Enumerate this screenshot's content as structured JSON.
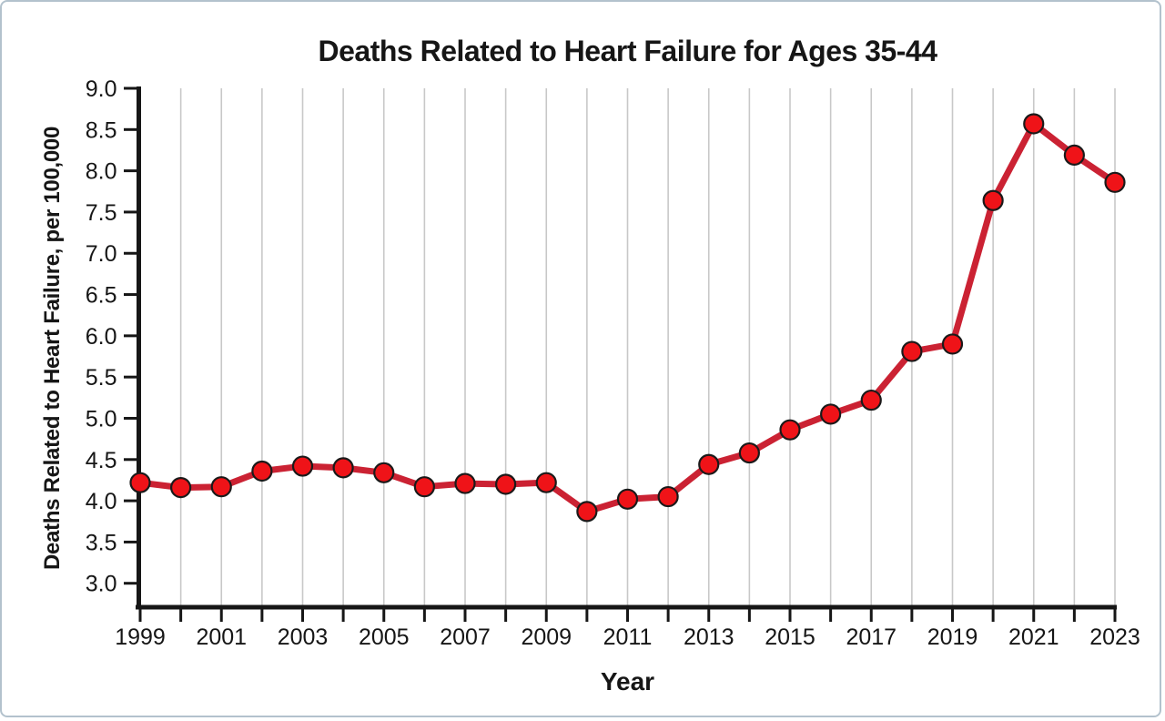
{
  "chart_data": {
    "type": "line",
    "title": "Deaths Related to Heart Failure for Ages 35-44",
    "xlabel": "Year",
    "ylabel": "Deaths Related to Heart Failure, per 100,000",
    "x": [
      1999,
      2000,
      2001,
      2002,
      2003,
      2004,
      2005,
      2006,
      2007,
      2008,
      2009,
      2010,
      2011,
      2012,
      2013,
      2014,
      2015,
      2016,
      2017,
      2018,
      2019,
      2020,
      2021,
      2022,
      2023
    ],
    "series": [
      {
        "name": "Deaths related to heart failure, ages 35-44, per 100,000",
        "values": [
          4.22,
          4.16,
          4.17,
          4.36,
          4.42,
          4.4,
          4.34,
          4.17,
          4.21,
          4.2,
          4.22,
          3.87,
          4.02,
          4.05,
          4.44,
          4.58,
          4.86,
          5.05,
          5.22,
          5.81,
          5.9,
          7.64,
          8.57,
          8.19,
          7.86
        ]
      }
    ],
    "ylim": [
      2.71,
      9.0
    ],
    "yticks": [
      3.0,
      3.5,
      4.0,
      4.5,
      5.0,
      5.5,
      6.0,
      6.5,
      7.0,
      7.5,
      8.0,
      8.5,
      9.0
    ],
    "ytick_labels": [
      "3.0",
      "3.5",
      "4.0",
      "4.5",
      "5.0",
      "5.5",
      "6.0",
      "6.5",
      "7.0",
      "7.5",
      "8.0",
      "8.5",
      "9.0"
    ],
    "xtick_labels": [
      "1999",
      "2001",
      "2003",
      "2005",
      "2007",
      "2009",
      "2011",
      "2013",
      "2015",
      "2017",
      "2019",
      "2021",
      "2023"
    ],
    "grid": "vertical-only",
    "legend": "none",
    "marker": "circle",
    "colors": {
      "line": "#CB2233",
      "marker_fill": "#EF1318",
      "marker_edge": "#1A1A1A",
      "grid": "#C8C8C8",
      "axis": "#161616",
      "text": "#161616",
      "card_border": "#B3C2CD",
      "background": "#FFFFFF"
    }
  }
}
